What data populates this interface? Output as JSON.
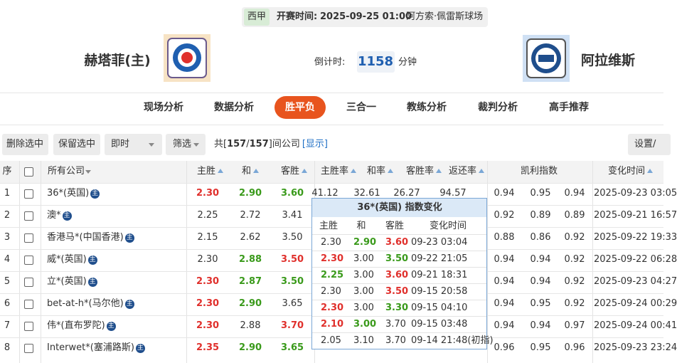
{
  "header": {
    "league": "西甲",
    "kickoff_label": "开赛时间:",
    "kickoff_time": "2025-09-25 01:00",
    "venue": "阿方索·佩雷斯球场",
    "home_team": "赫塔菲(主)",
    "countdown_label": "倒计时:",
    "countdown": "1158",
    "countdown_unit": "分钟",
    "away_team": "阿拉维斯"
  },
  "tabs": [
    "现场分析",
    "数据分析",
    "胜平负",
    "三合一",
    "教练分析",
    "裁判分析",
    "高手推荐"
  ],
  "active_tab": 2,
  "toolbar": {
    "buttons": [
      "删除选中",
      "保留选中"
    ],
    "mode": "即时",
    "filter": "筛选",
    "count_prefix": "共[",
    "count_shown": "157",
    "count_sep": "/",
    "count_total": "157",
    "count_suffix": "]间公司",
    "show_link": "[显示]",
    "settings": "设置/"
  },
  "table": {
    "headers": {
      "index": "序",
      "company": "所有公司",
      "home": "主胜",
      "draw": "和",
      "away": "客胜",
      "home_rate": "主胜率",
      "draw_rate": "和率",
      "away_rate": "客胜率",
      "return_rate": "返还率",
      "kelly": "凯利指数",
      "time": "变化时间"
    },
    "badge": "主",
    "rows": [
      {
        "index": "1",
        "company": "36*(英国)",
        "odds": [
          "2.30",
          "2.90",
          "3.60"
        ],
        "odds_colors": [
          "#e0302c",
          "#3a9a1b",
          "#3a9a1b"
        ],
        "rates": [
          "41.12",
          "32.61",
          "26.27",
          "94.57"
        ],
        "kelly": [
          "0.94",
          "0.95",
          "0.94"
        ],
        "time": "2025-09-23 03:05"
      },
      {
        "index": "2",
        "company": "澳*",
        "odds": [
          "2.25",
          "2.72",
          "3.41"
        ],
        "odds_colors": [
          null,
          null,
          null
        ],
        "kelly": [
          "0.92",
          "0.89",
          "0.89"
        ],
        "time": "2025-09-21 16:57"
      },
      {
        "index": "3",
        "company": "香港马*(中国香港)",
        "odds": [
          "2.15",
          "2.62",
          "3.50"
        ],
        "odds_colors": [
          null,
          null,
          null
        ],
        "kelly": [
          "0.88",
          "0.86",
          "0.92"
        ],
        "time": "2025-09-22 19:33"
      },
      {
        "index": "4",
        "company": "威*(英国)",
        "odds": [
          "2.30",
          "2.88",
          "3.50"
        ],
        "odds_colors": [
          null,
          "#3a9a1b",
          "#e0302c"
        ],
        "kelly": [
          "0.94",
          "0.94",
          "0.92"
        ],
        "time": "2025-09-22 06:28"
      },
      {
        "index": "5",
        "company": "立*(英国)",
        "odds": [
          "2.30",
          "2.87",
          "3.50"
        ],
        "odds_colors": [
          "#e0302c",
          "#3a9a1b",
          "#3a9a1b"
        ],
        "kelly": [
          "0.94",
          "0.94",
          "0.92"
        ],
        "time": "2025-09-23 04:27"
      },
      {
        "index": "6",
        "company": "bet-at-h*(马尔他)",
        "odds": [
          "2.30",
          "2.90",
          "3.65"
        ],
        "odds_colors": [
          "#e0302c",
          "#3a9a1b",
          null
        ],
        "kelly": [
          "0.94",
          "0.95",
          "0.92"
        ],
        "time": "2025-09-24 00:29"
      },
      {
        "index": "7",
        "company": "伟*(直布罗陀)",
        "odds": [
          "2.30",
          "2.88",
          "3.70"
        ],
        "odds_colors": [
          "#e0302c",
          null,
          "#e0302c"
        ],
        "kelly": [
          "0.94",
          "0.94",
          "0.97"
        ],
        "time": "2025-09-24 00:41"
      },
      {
        "index": "8",
        "company": "Interwet*(塞浦路斯)",
        "odds": [
          "2.35",
          "2.90",
          "3.65"
        ],
        "odds_colors": [
          "#e0302c",
          "#3a9a1b",
          "#3a9a1b"
        ],
        "kelly": [
          "0.96",
          "0.95",
          "0.96"
        ],
        "time": "2025-09-23 23:24"
      }
    ]
  },
  "popup": {
    "title": "36*(英国) 指数变化",
    "headers": [
      "主胜",
      "和",
      "客胜",
      "变化时间"
    ],
    "rows": [
      {
        "odds": [
          "2.30",
          "2.90",
          "3.60"
        ],
        "colors": [
          null,
          "#3a9a1b",
          "#e0302c"
        ],
        "time": "09-23 03:04"
      },
      {
        "odds": [
          "2.30",
          "3.00",
          "3.50"
        ],
        "colors": [
          "#e0302c",
          null,
          "#3a9a1b"
        ],
        "time": "09-22 21:05"
      },
      {
        "odds": [
          "2.25",
          "3.00",
          "3.60"
        ],
        "colors": [
          "#3a9a1b",
          null,
          "#e0302c"
        ],
        "time": "09-21 18:31"
      },
      {
        "odds": [
          "2.30",
          "3.00",
          "3.50"
        ],
        "colors": [
          null,
          null,
          "#e0302c"
        ],
        "time": "09-15 20:58"
      },
      {
        "odds": [
          "2.30",
          "3.00",
          "3.30"
        ],
        "colors": [
          "#e0302c",
          null,
          "#3a9a1b"
        ],
        "time": "09-15 04:10"
      },
      {
        "odds": [
          "2.10",
          "3.00",
          "3.70"
        ],
        "colors": [
          "#e0302c",
          "#3a9a1b",
          null
        ],
        "time": "09-15 03:48"
      },
      {
        "odds": [
          "2.05",
          "3.10",
          "3.70"
        ],
        "colors": [
          null,
          null,
          null
        ],
        "time": "09-14 21:48(初指)"
      }
    ]
  }
}
